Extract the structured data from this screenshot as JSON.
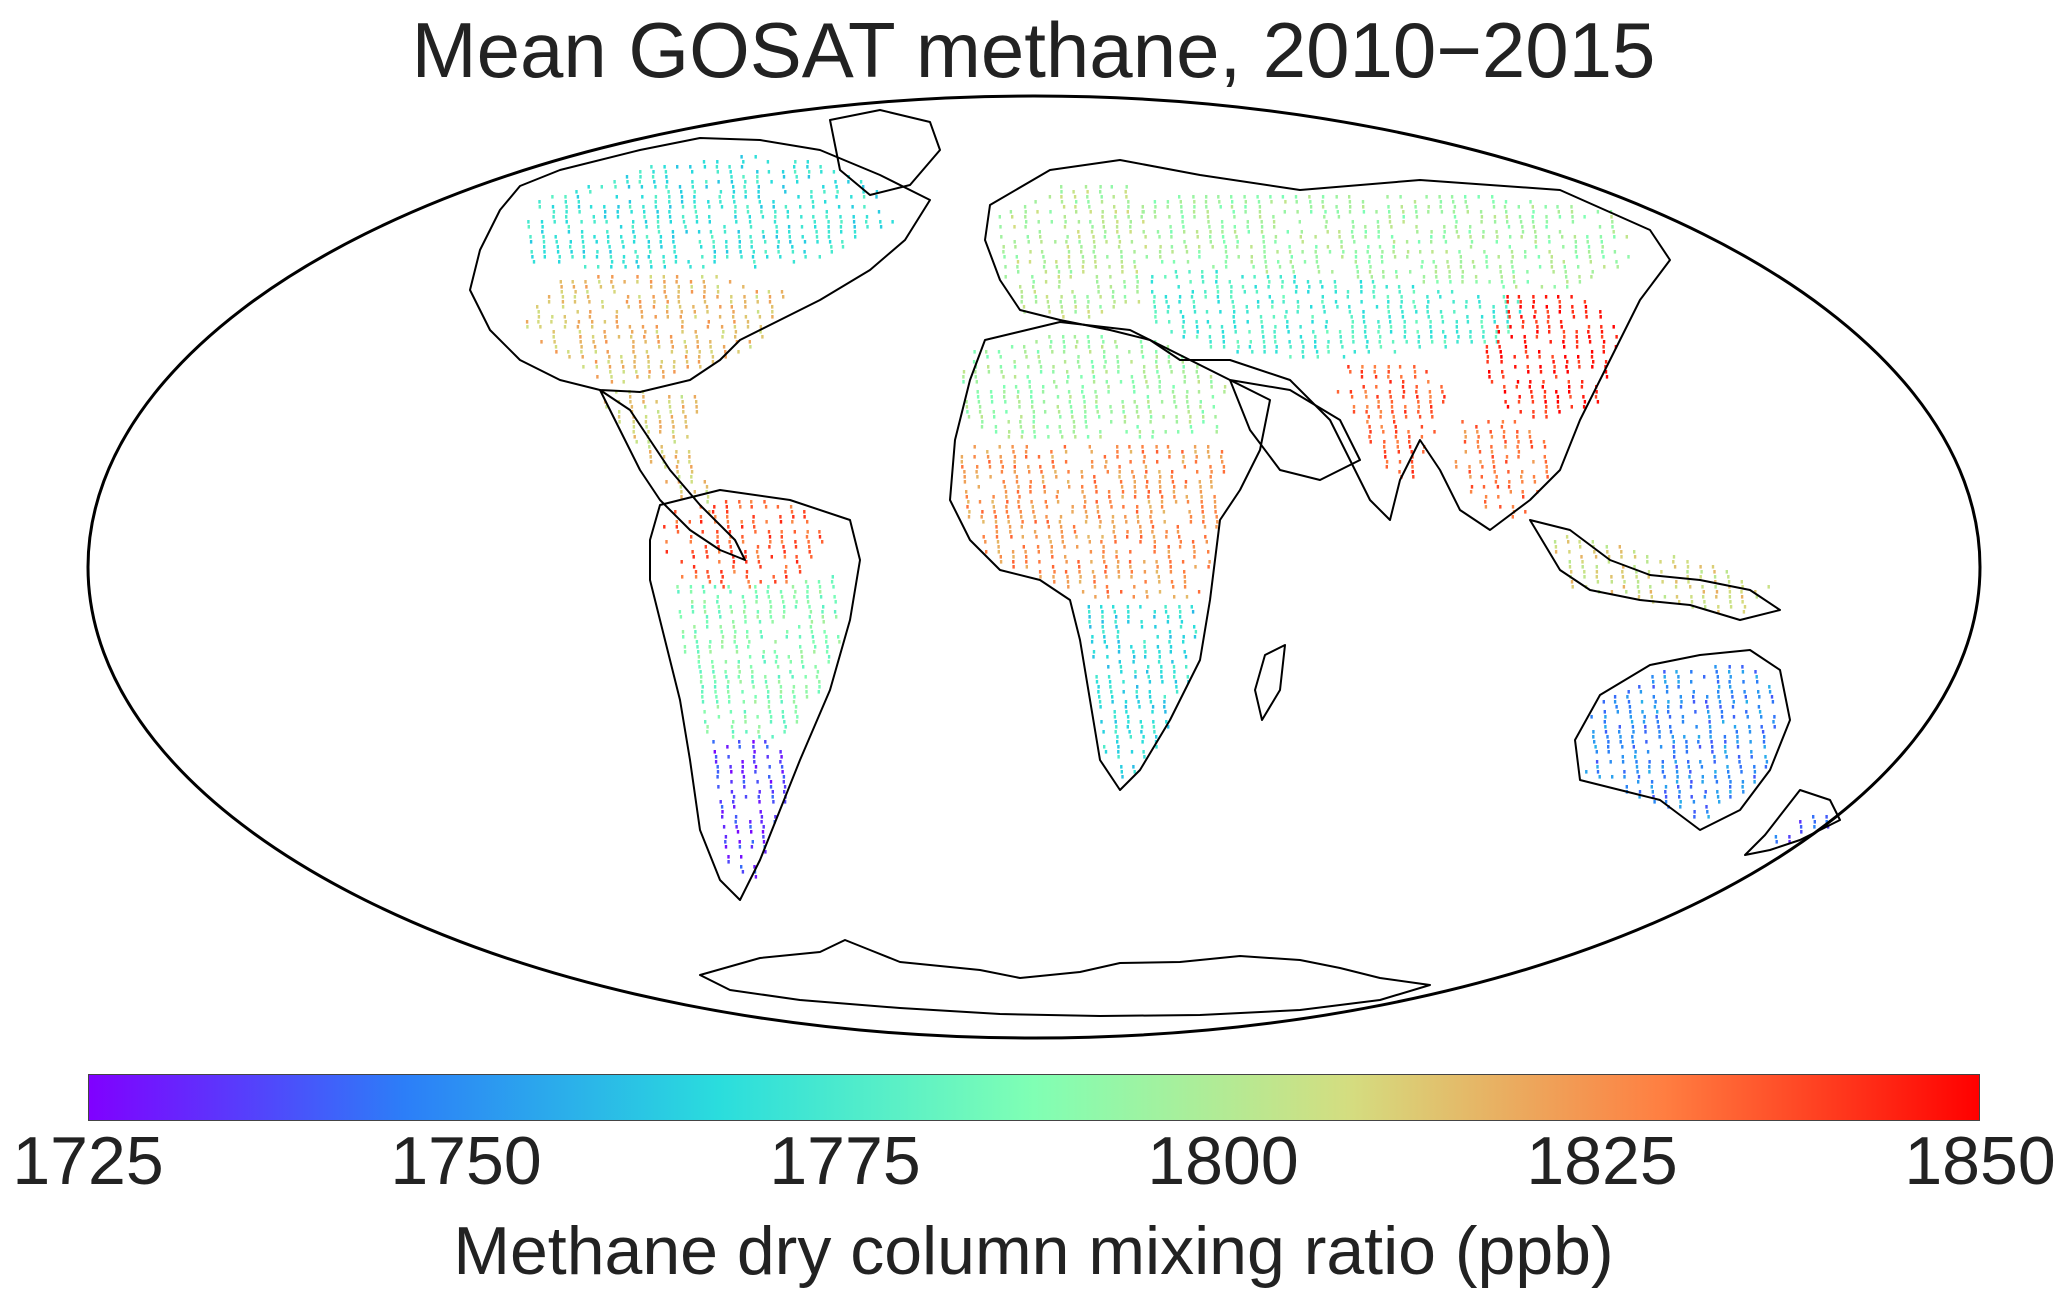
{
  "title": "Mean GOSAT methane, 2010−2015",
  "projection": "mollweide",
  "colorbar": {
    "label": "Methane dry column mixing ratio (ppb)",
    "ticks": [
      "1725",
      "1750",
      "1775",
      "1800",
      "1825",
      "1850"
    ],
    "range": [
      1725,
      1850
    ],
    "colormap": "rainbow",
    "colors": [
      "#8000ff",
      "#2c7ef8",
      "#2adddd",
      "#80ffb4",
      "#d4dd80",
      "#ff7e41",
      "#ff0000"
    ]
  },
  "chart_data": {
    "type": "map",
    "title": "Mean GOSAT methane, 2010−2015",
    "value_label": "Methane dry column mixing ratio (ppb)",
    "value_range": [
      1725,
      1850
    ],
    "regions": [
      {
        "name": "Canada / northern North America",
        "value": 1770
      },
      {
        "name": "Eastern United States",
        "value": 1815
      },
      {
        "name": "Mexico / Central America",
        "value": 1812
      },
      {
        "name": "Northern South America / Amazon",
        "value": 1835
      },
      {
        "name": "Central South America",
        "value": 1788
      },
      {
        "name": "Southern South America / Patagonia",
        "value": 1735
      },
      {
        "name": "Sahara / North Africa",
        "value": 1795
      },
      {
        "name": "Central Africa",
        "value": 1825
      },
      {
        "name": "Southern Africa",
        "value": 1768
      },
      {
        "name": "Europe",
        "value": 1800
      },
      {
        "name": "Russia / Siberia",
        "value": 1795
      },
      {
        "name": "Central Asia / Mongolia",
        "value": 1775
      },
      {
        "name": "India",
        "value": 1835
      },
      {
        "name": "Eastern China",
        "value": 1845
      },
      {
        "name": "Southeast Asia",
        "value": 1830
      },
      {
        "name": "Indonesia",
        "value": 1810
      },
      {
        "name": "Australia",
        "value": 1748
      },
      {
        "name": "New Zealand",
        "value": 1740
      }
    ]
  }
}
